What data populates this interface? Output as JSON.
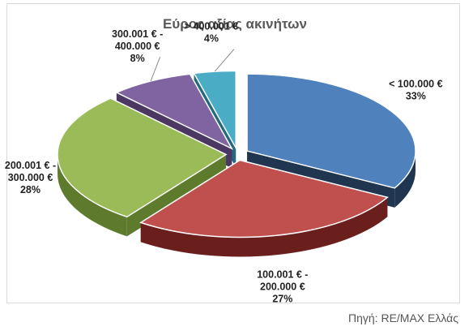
{
  "chart_data": {
    "type": "pie",
    "title": "Εύρος αξίας ακινήτων",
    "slices": [
      {
        "label_lines": [
          "< 100.000 €"
        ],
        "percent_label": "33%",
        "value": 33,
        "color": "#4F81BD",
        "side_color": "#1F3550"
      },
      {
        "label_lines": [
          "100.001 € -",
          "200.000 €"
        ],
        "percent_label": "27%",
        "value": 27,
        "color": "#C0504D",
        "side_color": "#6A1F1D"
      },
      {
        "label_lines": [
          "200.001 € -",
          "300.000 €"
        ],
        "percent_label": "28%",
        "value": 28,
        "color": "#9BBB59",
        "side_color": "#5E7A2C"
      },
      {
        "label_lines": [
          "300.001 € -",
          "400.000 €"
        ],
        "percent_label": "8%",
        "value": 8,
        "color": "#8064A2",
        "side_color": "#4A3863"
      },
      {
        "label_lines": [
          "> 400.001 €"
        ],
        "percent_label": "4%",
        "value": 4,
        "color": "#4BACC6",
        "side_color": "#24697C"
      }
    ]
  },
  "source": "Πηγή: RE/MAX Ελλάς"
}
